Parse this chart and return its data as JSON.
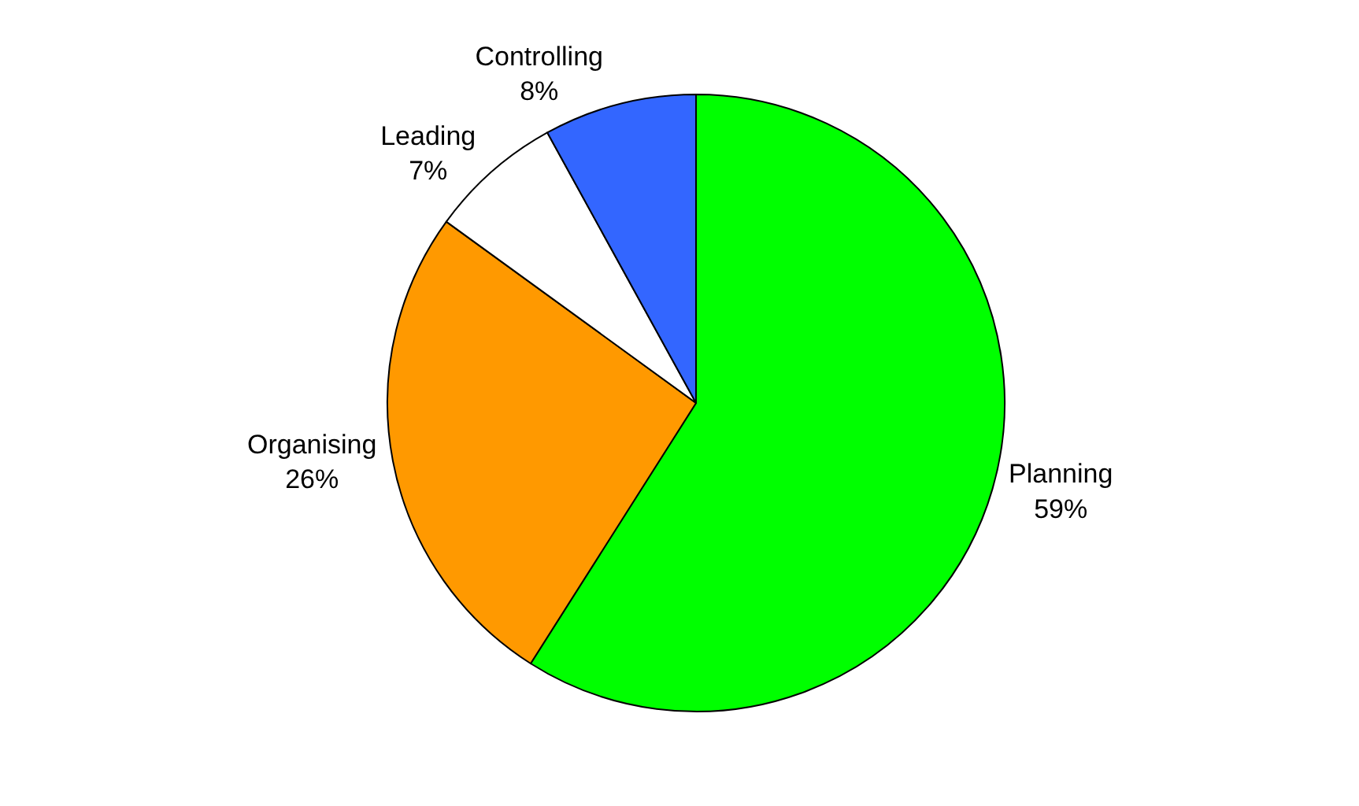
{
  "chart_data": {
    "type": "pie",
    "categories": [
      "Planning",
      "Organising",
      "Leading",
      "Controlling"
    ],
    "values": [
      59,
      26,
      7,
      8
    ],
    "value_labels": [
      "59%",
      "26%",
      "7%",
      "8%"
    ],
    "colors": [
      "#00ff00",
      "#ff9900",
      "#ffffff",
      "#3366ff"
    ],
    "legend": false
  }
}
